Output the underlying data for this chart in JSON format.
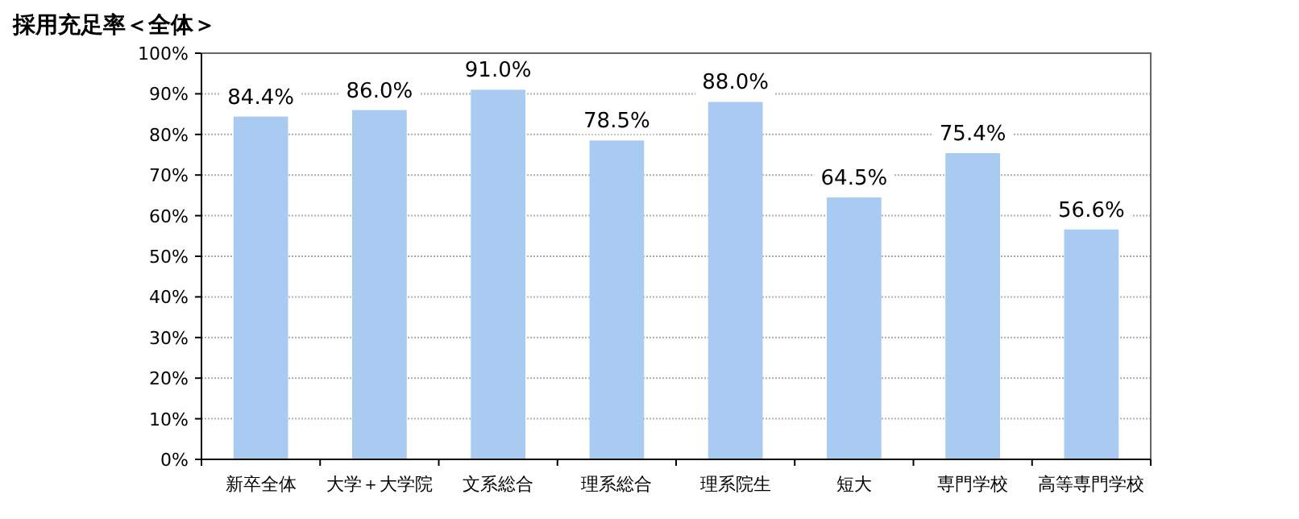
{
  "chart_data": {
    "type": "bar",
    "title": "採用充足率＜全体＞",
    "categories": [
      "新卒全体",
      "大学＋大学院",
      "文系総合",
      "理系総合",
      "理系院生",
      "短大",
      "専門学校",
      "高等専門学校"
    ],
    "series": [
      {
        "color": "#a9cbf1",
        "values": [
          84.4,
          86.0,
          91.0,
          78.5,
          88.0,
          64.5,
          75.4,
          56.6
        ]
      }
    ],
    "value_labels": [
      "84.4%",
      "86.0%",
      "91.0%",
      "78.5%",
      "88.0%",
      "64.5%",
      "75.4%",
      "56.6%"
    ],
    "ylim": [
      0,
      100
    ],
    "yticks": [
      {
        "value": 0,
        "label": "0%"
      },
      {
        "value": 10,
        "label": "10%"
      },
      {
        "value": 20,
        "label": "20%"
      },
      {
        "value": 30,
        "label": "30%"
      },
      {
        "value": 40,
        "label": "40%"
      },
      {
        "value": 50,
        "label": "50%"
      },
      {
        "value": 60,
        "label": "60%"
      },
      {
        "value": 70,
        "label": "70%"
      },
      {
        "value": 80,
        "label": "80%"
      },
      {
        "value": 90,
        "label": "90%"
      },
      {
        "value": 100,
        "label": "100%"
      }
    ],
    "grid": "y"
  }
}
